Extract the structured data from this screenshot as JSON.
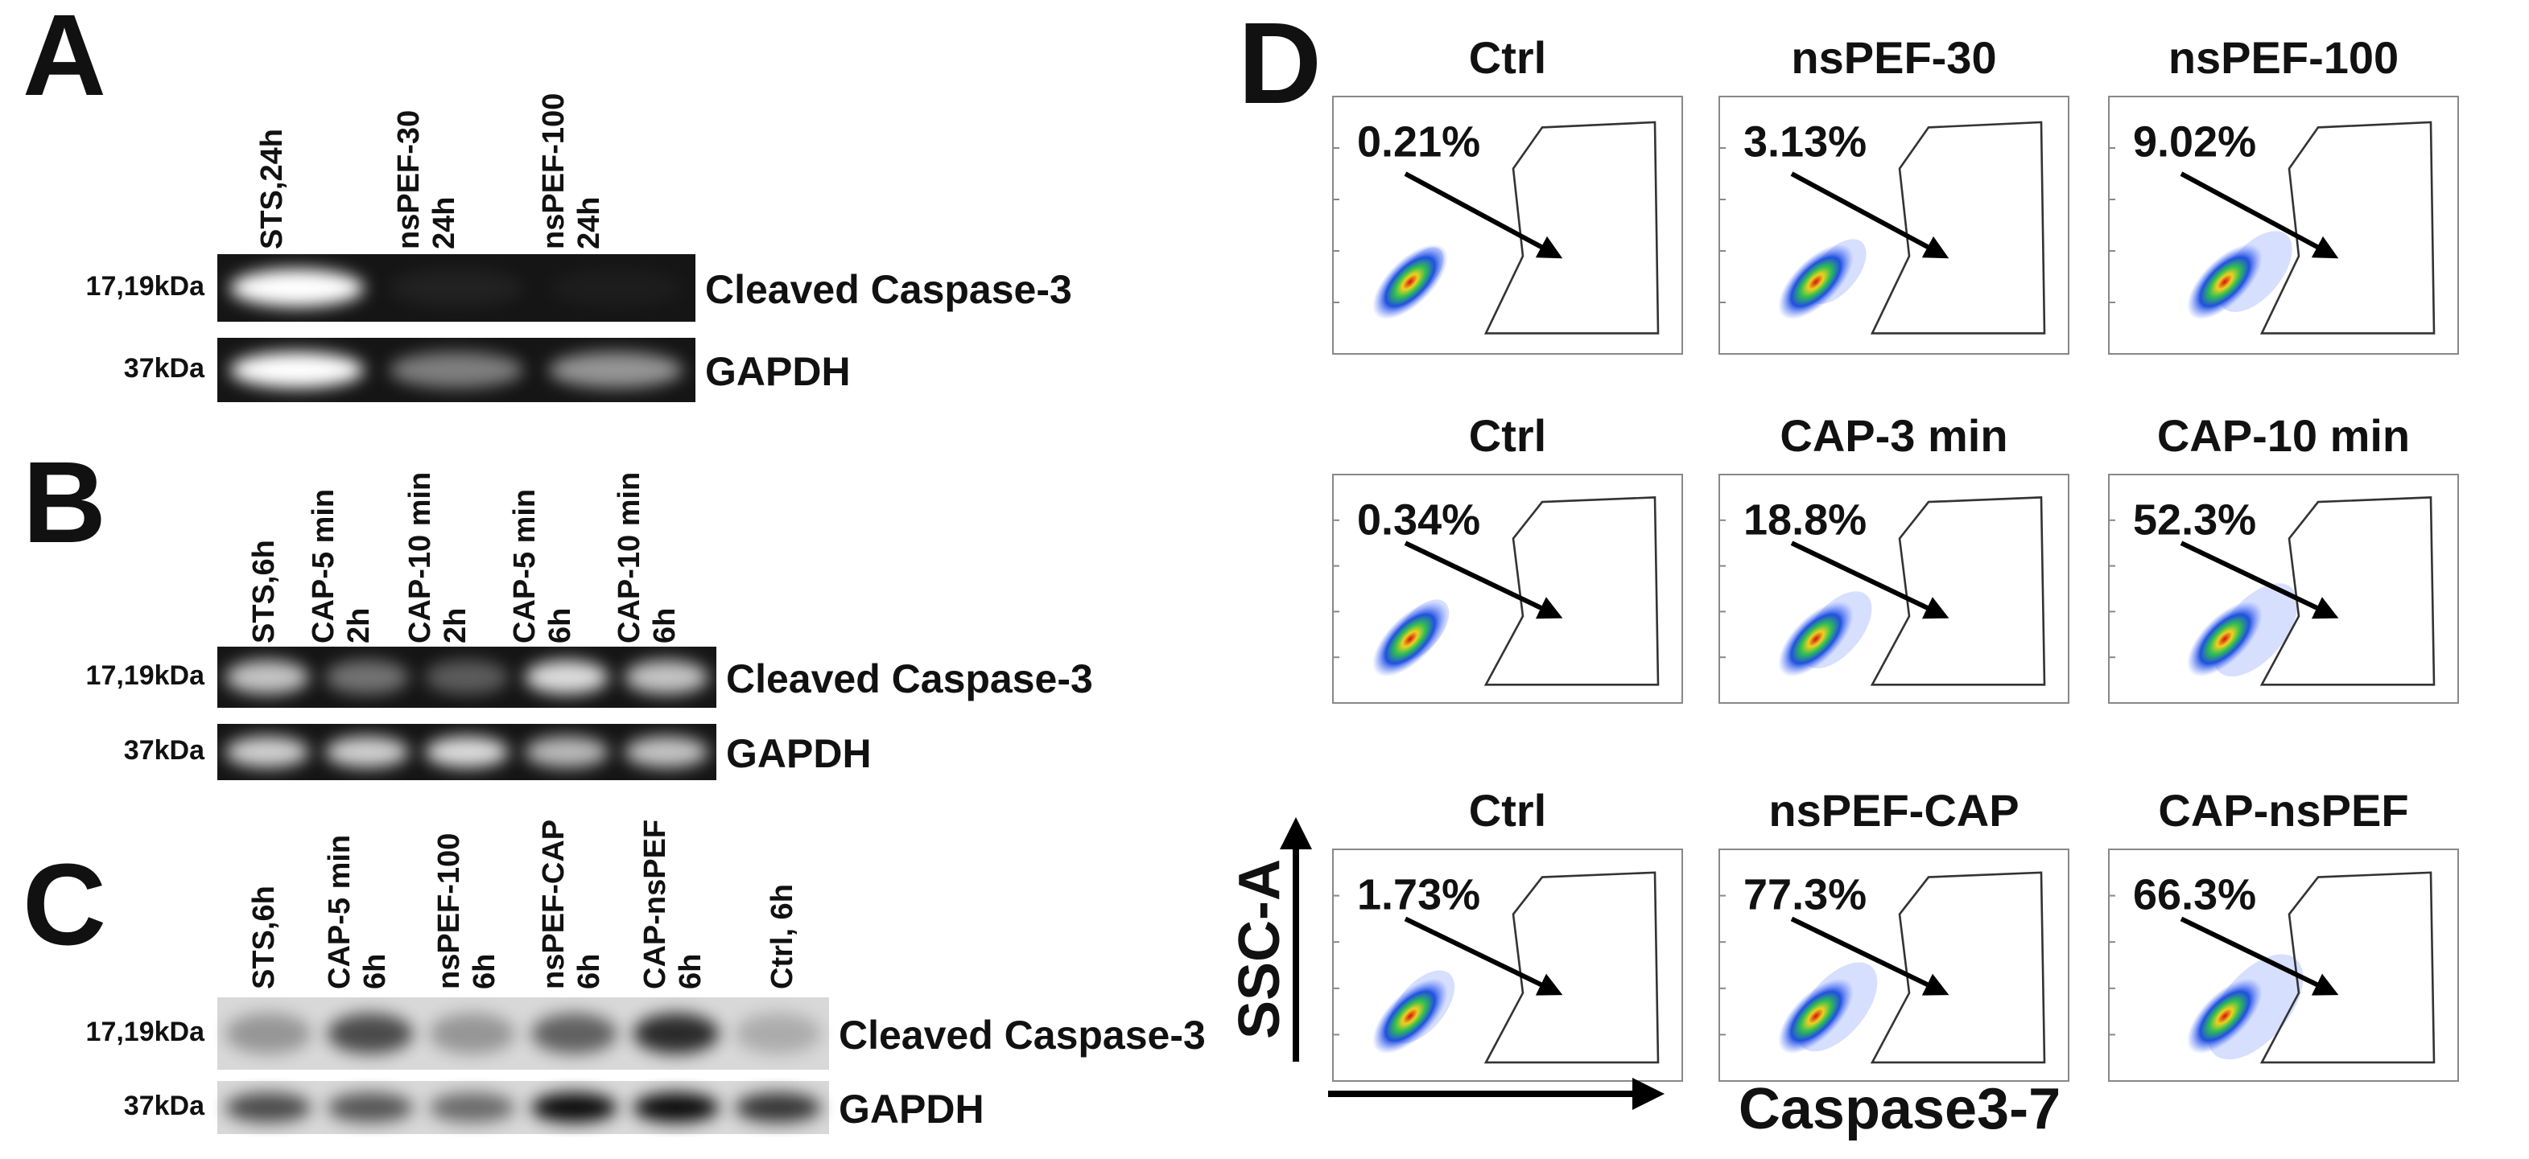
{
  "panels": [
    {
      "letter": "A",
      "lanes": [
        [
          "STS,24h"
        ],
        [
          "nsPEF-30",
          "24h"
        ],
        [
          "nsPEF-100",
          "24h"
        ]
      ],
      "blots": [
        {
          "marker": "17,19kDa",
          "label": "Cleaved Caspase-3"
        },
        {
          "marker": "37kDa",
          "label": "GAPDH"
        }
      ]
    },
    {
      "letter": "B",
      "lanes": [
        [
          "STS,6h"
        ],
        [
          "CAP-5 min",
          "2h"
        ],
        [
          "CAP-10 min",
          "2h"
        ],
        [
          "CAP-5 min",
          "6h"
        ],
        [
          "CAP-10 min",
          "6h"
        ]
      ],
      "blots": [
        {
          "marker": "17,19kDa",
          "label": "Cleaved Caspase-3"
        },
        {
          "marker": "37kDa",
          "label": "GAPDH"
        }
      ]
    },
    {
      "letter": "C",
      "lanes": [
        [
          "STS,6h"
        ],
        [
          "CAP-5 min",
          "6h"
        ],
        [
          "nsPEF-100",
          "6h"
        ],
        [
          "nsPEF-CAP",
          "6h"
        ],
        [
          "CAP-nsPEF",
          "6h"
        ],
        [
          "Ctrl, 6h"
        ]
      ],
      "blots": [
        {
          "marker": "17,19kDa",
          "label": "Cleaved Caspase-3"
        },
        {
          "marker": "37kDa",
          "label": "GAPDH"
        }
      ]
    }
  ],
  "flow": {
    "letter": "D",
    "y_axis": "SSC-A",
    "x_axis": "Caspase3-7",
    "plots": [
      [
        {
          "title": "Ctrl",
          "percent": "0.21%"
        },
        {
          "title": "nsPEF-30",
          "percent": "3.13%"
        },
        {
          "title": "nsPEF-100",
          "percent": "9.02%"
        }
      ],
      [
        {
          "title": "Ctrl",
          "percent": "0.34%"
        },
        {
          "title": "CAP-3 min",
          "percent": "18.8%"
        },
        {
          "title": "CAP-10 min",
          "percent": "52.3%"
        }
      ],
      [
        {
          "title": "Ctrl",
          "percent": "1.73%"
        },
        {
          "title": "nsPEF-CAP",
          "percent": "77.3%"
        },
        {
          "title": "CAP-nsPEF",
          "percent": "66.3%"
        }
      ]
    ]
  }
}
